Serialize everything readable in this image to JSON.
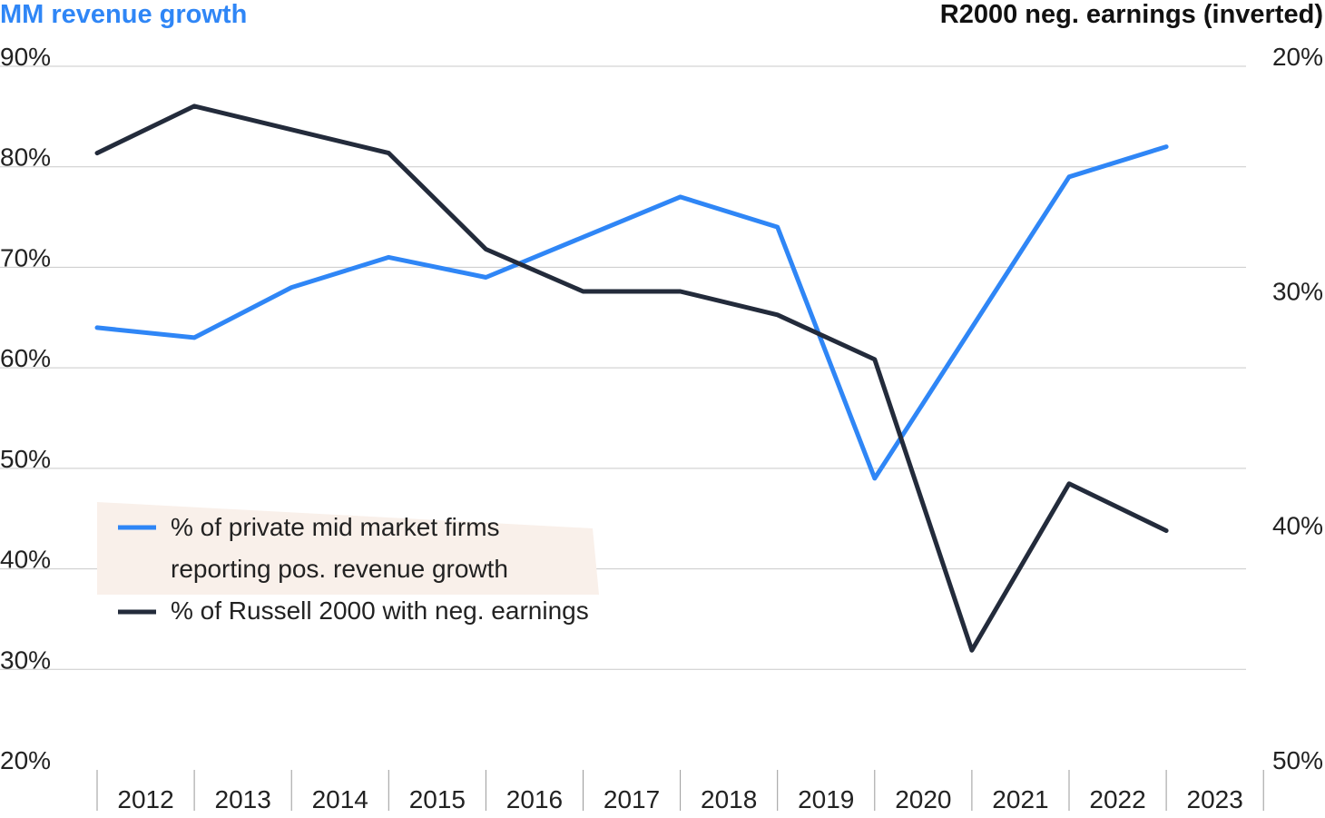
{
  "chart_data": {
    "type": "line",
    "title_left": "MM revenue growth",
    "title_right": "R2000 neg. earnings (inverted)",
    "x": [
      "2012",
      "2013",
      "2014",
      "2015",
      "2016",
      "2017",
      "2018",
      "2019",
      "2020",
      "2021",
      "2022",
      "2023"
    ],
    "y_left": {
      "ticks": [
        "90%",
        "80%",
        "70%",
        "60%",
        "50%",
        "40%",
        "30%",
        "20%"
      ],
      "min": 20,
      "max": 90
    },
    "y_right": {
      "ticks": [
        "20%",
        "30%",
        "40%",
        "50%"
      ],
      "min": 20,
      "max": 50,
      "inverted": true
    },
    "grid": true,
    "legend_placement": "lower-left",
    "series": [
      {
        "name": "% of private mid market firms reporting pos. revenue growth",
        "legend_lines": [
          "% of private mid market firms",
          "reporting pos. revenue growth"
        ],
        "axis": "left",
        "color": "#2f86f6",
        "values": [
          64,
          63,
          68,
          71,
          69,
          73,
          77,
          74,
          49,
          64,
          79,
          82
        ]
      },
      {
        "name": "% of Russell 2000 with neg. earnings",
        "legend_lines": [
          "% of Russell 2000 with neg. earnings"
        ],
        "axis": "right",
        "color": "#232b3b",
        "values": [
          23.7,
          21.7,
          22.7,
          23.7,
          27.8,
          29.6,
          29.6,
          30.6,
          32.5,
          44.9,
          37.8,
          39.8
        ]
      }
    ]
  }
}
